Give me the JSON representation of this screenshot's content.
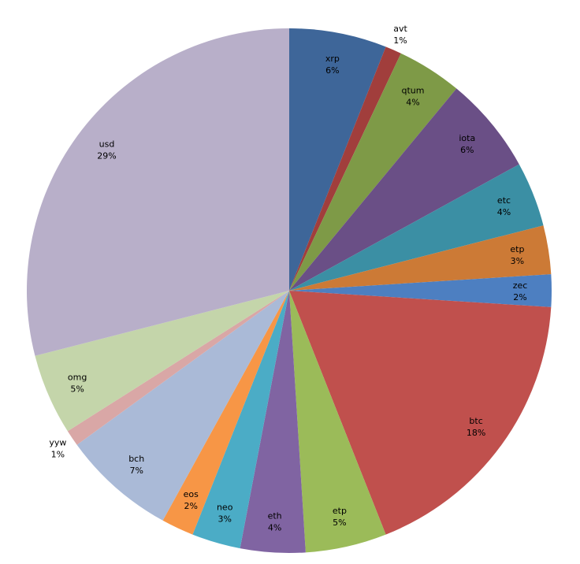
{
  "chart_data": {
    "type": "pie",
    "start_angle_deg": 0,
    "direction": "clockwise",
    "categories": [
      "xrp",
      "avt",
      "qtum",
      "iota",
      "etc",
      "etp",
      "zec",
      "btc",
      "etp",
      "eth",
      "neo",
      "eos",
      "bch",
      "yyw",
      "omg",
      "usd"
    ],
    "values": [
      6,
      1,
      4,
      6,
      4,
      3,
      2,
      18,
      5,
      4,
      3,
      2,
      7,
      1,
      5,
      29
    ],
    "labels": [
      "6%",
      "1%",
      "4%",
      "6%",
      "4%",
      "3%",
      "2%",
      "18%",
      "5%",
      "4%",
      "3%",
      "2%",
      "7%",
      "1%",
      "5%",
      "29%"
    ],
    "colors": [
      "#3E6699",
      "#A13E3C",
      "#7E9A47",
      "#6A4F86",
      "#3B8FA4",
      "#CC7A36",
      "#4D7FC1",
      "#C0504D",
      "#9BBB59",
      "#8064A2",
      "#4BACC6",
      "#F79646",
      "#AABAD7",
      "#D9A7A6",
      "#C4D5AA",
      "#B8AFC9"
    ],
    "legend": "none",
    "title": ""
  }
}
